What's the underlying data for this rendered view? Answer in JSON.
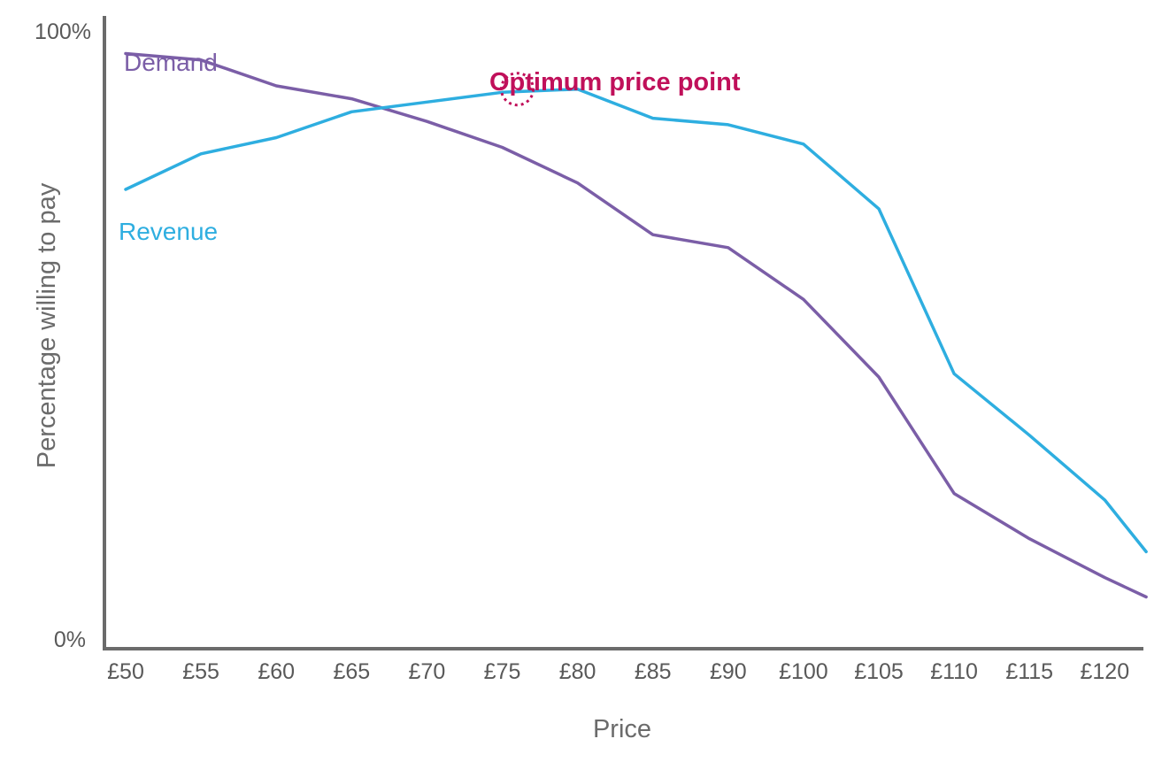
{
  "chart_data": {
    "type": "line",
    "title": "",
    "xlabel": "Price",
    "ylabel": "Percentage willing to pay",
    "categories": [
      "£50",
      "£55",
      "£60",
      "£65",
      "£70",
      "£75",
      "£80",
      "£85",
      "£90",
      "£100",
      "£105",
      "£110",
      "£115",
      "£120"
    ],
    "series_x": [
      0,
      1,
      2,
      3,
      4,
      5,
      6,
      7,
      8,
      9,
      10,
      11,
      12,
      13
    ],
    "y_ticks": [
      "0%",
      "100%"
    ],
    "ylim": [
      0,
      100
    ],
    "grid": false,
    "legend": "none (series labelled directly on chart)",
    "series": [
      {
        "name": "Demand",
        "color": "#7b5ea7",
        "points": [
          [
            0,
            92
          ],
          [
            1,
            91
          ],
          [
            2,
            87
          ],
          [
            3,
            85
          ],
          [
            4,
            81.5
          ],
          [
            5,
            77.5
          ],
          [
            6,
            72
          ],
          [
            7,
            64
          ],
          [
            8,
            62
          ],
          [
            9,
            54
          ],
          [
            10,
            42
          ],
          [
            11,
            24
          ],
          [
            12,
            17
          ],
          [
            13,
            11
          ],
          [
            13.55,
            8
          ]
        ]
      },
      {
        "name": "Revenue",
        "color": "#2eaee0",
        "points": [
          [
            0,
            71
          ],
          [
            1,
            76.5
          ],
          [
            2,
            79
          ],
          [
            3,
            83
          ],
          [
            4,
            84.5
          ],
          [
            5,
            86
          ],
          [
            6,
            86.5
          ],
          [
            7,
            82
          ],
          [
            8,
            81
          ],
          [
            9,
            78
          ],
          [
            10,
            68
          ],
          [
            11,
            42.5
          ],
          [
            12,
            33
          ],
          [
            13,
            23
          ],
          [
            13.55,
            15
          ]
        ]
      }
    ],
    "annotations": [
      {
        "text": "Optimum price point",
        "color": "#c0105a",
        "x": 5.2,
        "y": 86.5
      }
    ]
  }
}
